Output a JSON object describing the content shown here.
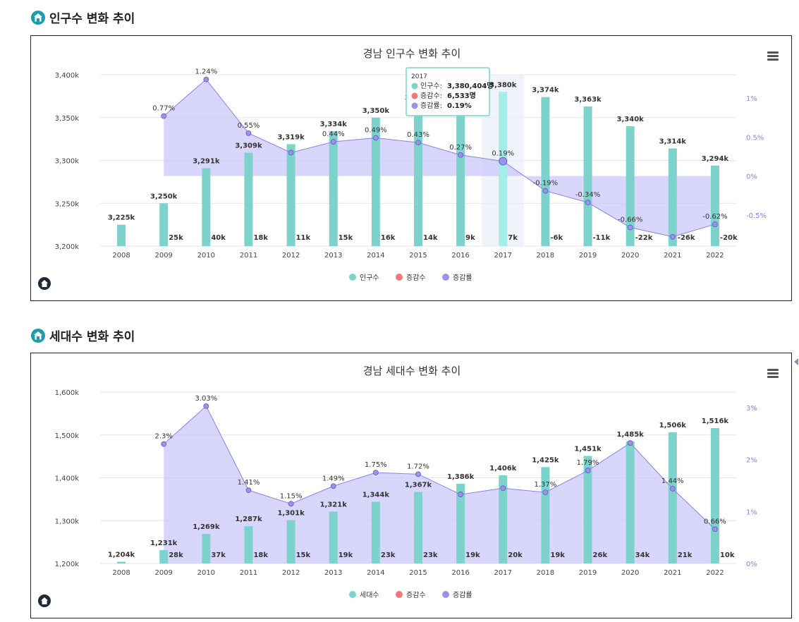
{
  "sections": [
    {
      "title": "인구수 변화 추이"
    },
    {
      "title": "세대수 변화 추이"
    }
  ],
  "colors": {
    "bar": "#7dd3cc",
    "bar_dark": "#86c4dc",
    "area": "#c9c5fb",
    "line": "#8b82e8",
    "dot": "#9b93e3",
    "right_axis": "#8b82e8",
    "legend_diff": "#f2777a"
  },
  "chart_data": [
    {
      "type": "bar",
      "title": "경남 인구수 변화 추이",
      "categories": [
        "2008",
        "2009",
        "2010",
        "2011",
        "2012",
        "2013",
        "2014",
        "2015",
        "2016",
        "2017",
        "2018",
        "2019",
        "2020",
        "2021",
        "2022"
      ],
      "series": [
        {
          "name": "인구수",
          "values": [
            3225,
            3250,
            3291,
            3309,
            3319,
            3334,
            3350,
            3365,
            3374,
            3380,
            3374,
            3363,
            3340,
            3314,
            3294
          ],
          "labels": [
            "3,225k",
            "3,250k",
            "3,291k",
            "3,309k",
            "3,319k",
            "3,334k",
            "3,350k",
            "3,365k",
            "",
            "3,380k",
            "3,374k",
            "3,363k",
            "3,340k",
            "3,314k",
            "3,294k"
          ]
        },
        {
          "name": "증감수",
          "labels": [
            "",
            "25k",
            "40k",
            "18k",
            "11k",
            "15k",
            "16k",
            "14k",
            "9k",
            "7k",
            "-6k",
            "-11k",
            "-22k",
            "-26k",
            "-20k"
          ]
        },
        {
          "name": "증감률",
          "values": [
            null,
            0.77,
            1.24,
            0.55,
            0.3,
            0.44,
            0.49,
            0.43,
            0.27,
            0.19,
            -0.19,
            -0.34,
            -0.66,
            -0.78,
            -0.62
          ],
          "labels": [
            "",
            "0.77%",
            "1.24%",
            "0.55%",
            "",
            "0.44%",
            "0.49%",
            "0.43%",
            "0.27%",
            "0.19%",
            "-0.19%",
            "-0.34%",
            "-0.66%",
            "",
            "-0.62%"
          ]
        }
      ],
      "y_ticks": [
        "3,400k",
        "3,350k",
        "3,300k",
        "3,250k",
        "3,200k"
      ],
      "ylim": [
        3200,
        3400
      ],
      "y2_ticks": [
        "1%",
        "0.5%",
        "0%",
        "-0.5%"
      ],
      "y2lim": [
        -0.9,
        1.3
      ],
      "legend": [
        "인구수",
        "증감수",
        "증감률"
      ],
      "legend_position": "bottom-center",
      "highlight_index": 9,
      "tooltip": {
        "year": "2017",
        "rows": [
          {
            "label": "인구수:",
            "value": "3,380,404명"
          },
          {
            "label": "증감수:",
            "value": "6,533명"
          },
          {
            "label": "증감률:",
            "value": "0.19%"
          }
        ]
      }
    },
    {
      "type": "bar",
      "title": "경남 세대수 변화 추이",
      "categories": [
        "2008",
        "2009",
        "2010",
        "2011",
        "2012",
        "2013",
        "2014",
        "2015",
        "2016",
        "2017",
        "2018",
        "2019",
        "2020",
        "2021",
        "2022"
      ],
      "series": [
        {
          "name": "세대수",
          "values": [
            1204,
            1231,
            1269,
            1287,
            1301,
            1321,
            1344,
            1367,
            1386,
            1406,
            1425,
            1451,
            1485,
            1506,
            1516
          ],
          "labels": [
            "1,204k",
            "1,231k",
            "1,269k",
            "1,287k",
            "1,301k",
            "1,321k",
            "1,344k",
            "1,367k",
            "1,386k",
            "1,406k",
            "1,425k",
            "1,451k",
            "1,485k",
            "1,506k",
            "1,516k"
          ]
        },
        {
          "name": "증감수",
          "labels": [
            "",
            "28k",
            "37k",
            "18k",
            "15k",
            "19k",
            "23k",
            "23k",
            "19k",
            "20k",
            "19k",
            "26k",
            "34k",
            "21k",
            "10k"
          ]
        },
        {
          "name": "증감률",
          "values": [
            null,
            2.3,
            3.03,
            1.41,
            1.15,
            1.49,
            1.75,
            1.72,
            1.33,
            1.45,
            1.37,
            1.79,
            2.32,
            1.44,
            0.66
          ],
          "labels": [
            "",
            "2.3%",
            "3.03%",
            "1.41%",
            "1.15%",
            "1.49%",
            "1.75%",
            "1.72%",
            "",
            "",
            "1.37%",
            "1.79%",
            "",
            "1.44%",
            "0.66%"
          ]
        }
      ],
      "y_ticks": [
        "1,600k",
        "1,500k",
        "1,400k",
        "1,300k",
        "1,200k"
      ],
      "ylim": [
        1200,
        1600
      ],
      "y2_ticks": [
        "3%",
        "2%",
        "1%",
        "0%"
      ],
      "y2lim": [
        0,
        3.3
      ],
      "legend": [
        "세대수",
        "증감수",
        "증감률"
      ],
      "legend_position": "bottom-center"
    }
  ]
}
